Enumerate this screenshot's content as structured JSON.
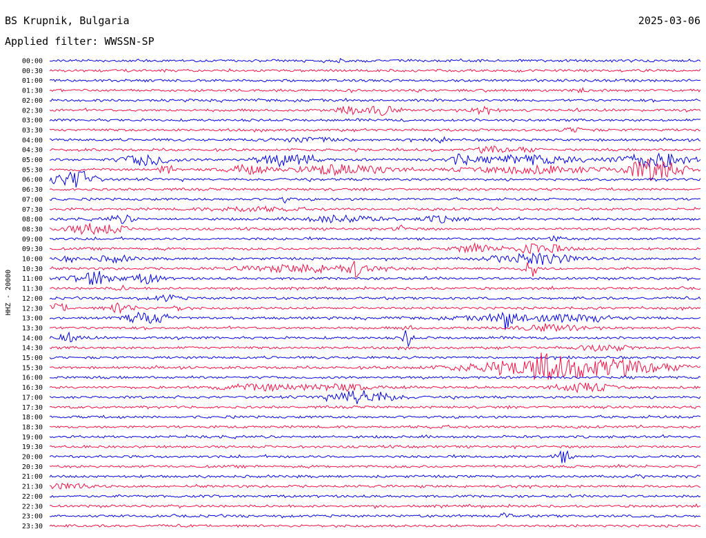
{
  "header": {
    "station": "BS Krupnik, Bulgaria",
    "date": "2025-03-06",
    "filter": "Applied filter: WWSSN-SP"
  },
  "chart_data": {
    "type": "line",
    "title": "BS Krupnik, Bulgaria",
    "ylabel": "HHZ - 20000",
    "colors": [
      "#0000dd",
      "#ee1144"
    ],
    "rows": [
      {
        "label": "00:00",
        "events": [
          {
            "at": 0.45,
            "amp": 7,
            "dur": 0.006
          }
        ]
      },
      {
        "label": "00:30",
        "events": []
      },
      {
        "label": "01:00",
        "events": []
      },
      {
        "label": "01:30",
        "events": [
          {
            "at": 0.82,
            "amp": 3,
            "dur": 0.01
          }
        ]
      },
      {
        "label": "02:00",
        "events": []
      },
      {
        "label": "02:30",
        "events": [
          {
            "at": 0.46,
            "amp": 5,
            "dur": 0.02
          },
          {
            "at": 0.51,
            "amp": 7,
            "dur": 0.02
          },
          {
            "at": 0.67,
            "amp": 5,
            "dur": 0.02
          }
        ]
      },
      {
        "label": "03:00",
        "events": []
      },
      {
        "label": "03:30",
        "events": [
          {
            "at": 0.81,
            "amp": 3,
            "dur": 0.02
          }
        ]
      },
      {
        "label": "04:00",
        "events": [
          {
            "at": 0.4,
            "amp": 3,
            "dur": 0.05
          },
          {
            "at": 0.6,
            "amp": 4,
            "dur": 0.01
          }
        ]
      },
      {
        "label": "04:30",
        "events": [
          {
            "at": 0.68,
            "amp": 4,
            "dur": 0.02
          },
          {
            "at": 0.73,
            "amp": 3,
            "dur": 0.02
          }
        ]
      },
      {
        "label": "05:00",
        "events": [
          {
            "at": 0.15,
            "amp": 8,
            "dur": 0.035
          },
          {
            "at": 0.36,
            "amp": 8,
            "dur": 0.04
          },
          {
            "at": 0.4,
            "amp": 10,
            "dur": 0.006
          },
          {
            "at": 0.63,
            "amp": 7,
            "dur": 0.015
          },
          {
            "at": 0.74,
            "amp": 6,
            "dur": 0.08
          },
          {
            "at": 0.93,
            "amp": 11,
            "dur": 0.05
          }
        ]
      },
      {
        "label": "05:30",
        "events": [
          {
            "at": 0.18,
            "amp": 8,
            "dur": 0.01
          },
          {
            "at": 0.3,
            "amp": 6,
            "dur": 0.03
          },
          {
            "at": 0.45,
            "amp": 7,
            "dur": 0.07
          },
          {
            "at": 0.75,
            "amp": 5,
            "dur": 0.1
          },
          {
            "at": 0.93,
            "amp": 16,
            "dur": 0.04
          }
        ]
      },
      {
        "label": "06:00",
        "events": [
          {
            "at": 0.02,
            "amp": 6,
            "dur": 0.03
          },
          {
            "at": 0.05,
            "amp": 10,
            "dur": 0.02
          }
        ]
      },
      {
        "label": "06:30",
        "events": []
      },
      {
        "label": "07:00",
        "events": [
          {
            "at": 0.36,
            "amp": 4,
            "dur": 0.01
          }
        ]
      },
      {
        "label": "07:30",
        "events": [
          {
            "at": 0.3,
            "amp": 3,
            "dur": 0.06
          }
        ]
      },
      {
        "label": "08:00",
        "events": [
          {
            "at": 0.11,
            "amp": 5,
            "dur": 0.02
          },
          {
            "at": 0.45,
            "amp": 5,
            "dur": 0.05
          },
          {
            "at": 0.6,
            "amp": 4,
            "dur": 0.03
          }
        ]
      },
      {
        "label": "08:30",
        "events": [
          {
            "at": 0.07,
            "amp": 8,
            "dur": 0.04
          },
          {
            "at": 0.54,
            "amp": 4,
            "dur": 0.01
          }
        ]
      },
      {
        "label": "09:00",
        "events": [
          {
            "at": 0.78,
            "amp": 4,
            "dur": 0.01
          }
        ]
      },
      {
        "label": "09:30",
        "events": [
          {
            "at": 0.65,
            "amp": 5,
            "dur": 0.03
          },
          {
            "at": 0.75,
            "amp": 7,
            "dur": 0.04
          }
        ]
      },
      {
        "label": "10:00",
        "events": [
          {
            "at": 0.03,
            "amp": 5,
            "dur": 0.01
          },
          {
            "at": 0.1,
            "amp": 4,
            "dur": 0.03
          },
          {
            "at": 0.75,
            "amp": 7,
            "dur": 0.06
          }
        ]
      },
      {
        "label": "10:30",
        "events": [
          {
            "at": 0.4,
            "amp": 5,
            "dur": 0.1
          },
          {
            "at": 0.47,
            "amp": 9,
            "dur": 0.01
          },
          {
            "at": 0.74,
            "amp": 12,
            "dur": 0.01
          }
        ]
      },
      {
        "label": "11:00",
        "events": [
          {
            "at": 0.07,
            "amp": 10,
            "dur": 0.03
          },
          {
            "at": 0.15,
            "amp": 7,
            "dur": 0.02
          }
        ]
      },
      {
        "label": "11:30",
        "events": [
          {
            "at": 0.11,
            "amp": 3,
            "dur": 0.01
          }
        ]
      },
      {
        "label": "12:00",
        "events": [
          {
            "at": 0.18,
            "amp": 4,
            "dur": 0.02
          }
        ]
      },
      {
        "label": "12:30",
        "events": [
          {
            "at": 0.01,
            "amp": 6,
            "dur": 0.02
          },
          {
            "at": 0.11,
            "amp": 7,
            "dur": 0.02
          },
          {
            "at": 0.2,
            "amp": 4,
            "dur": 0.01
          }
        ]
      },
      {
        "label": "13:00",
        "events": [
          {
            "at": 0.15,
            "amp": 8,
            "dur": 0.03
          },
          {
            "at": 0.7,
            "amp": 12,
            "dur": 0.01
          },
          {
            "at": 0.75,
            "amp": 5,
            "dur": 0.1
          },
          {
            "at": 0.84,
            "amp": 4,
            "dur": 0.01
          }
        ]
      },
      {
        "label": "13:30",
        "events": [
          {
            "at": 0.55,
            "amp": 3,
            "dur": 0.01
          },
          {
            "at": 0.77,
            "amp": 4,
            "dur": 0.05
          }
        ]
      },
      {
        "label": "14:00",
        "events": [
          {
            "at": 0.03,
            "amp": 5,
            "dur": 0.02
          },
          {
            "at": 0.55,
            "amp": 16,
            "dur": 0.006
          }
        ]
      },
      {
        "label": "14:30",
        "events": [
          {
            "at": 0.85,
            "amp": 4,
            "dur": 0.04
          }
        ]
      },
      {
        "label": "15:00",
        "events": []
      },
      {
        "label": "15:30",
        "events": [
          {
            "at": 0.8,
            "amp": 14,
            "dur": 0.14
          },
          {
            "at": 0.76,
            "amp": 8,
            "dur": 0.02
          }
        ]
      },
      {
        "label": "16:00",
        "events": []
      },
      {
        "label": "16:30",
        "events": [
          {
            "at": 0.33,
            "amp": 4,
            "dur": 0.07
          },
          {
            "at": 0.45,
            "amp": 4,
            "dur": 0.05
          },
          {
            "at": 0.82,
            "amp": 6,
            "dur": 0.04
          }
        ]
      },
      {
        "label": "17:00",
        "events": [
          {
            "at": 0.48,
            "amp": 9,
            "dur": 0.05
          }
        ]
      },
      {
        "label": "17:30",
        "events": []
      },
      {
        "label": "18:00",
        "events": []
      },
      {
        "label": "18:30",
        "events": []
      },
      {
        "label": "19:00",
        "events": []
      },
      {
        "label": "19:30",
        "events": []
      },
      {
        "label": "20:00",
        "events": [
          {
            "at": 0.79,
            "amp": 8,
            "dur": 0.012
          }
        ]
      },
      {
        "label": "20:30",
        "events": []
      },
      {
        "label": "21:00",
        "events": []
      },
      {
        "label": "21:30",
        "events": [
          {
            "at": 0.03,
            "amp": 4,
            "dur": 0.03
          }
        ]
      },
      {
        "label": "22:00",
        "events": []
      },
      {
        "label": "22:30",
        "events": []
      },
      {
        "label": "23:00",
        "events": [
          {
            "at": 0.7,
            "amp": 3,
            "dur": 0.01
          }
        ]
      },
      {
        "label": "23:30",
        "events": []
      }
    ]
  }
}
